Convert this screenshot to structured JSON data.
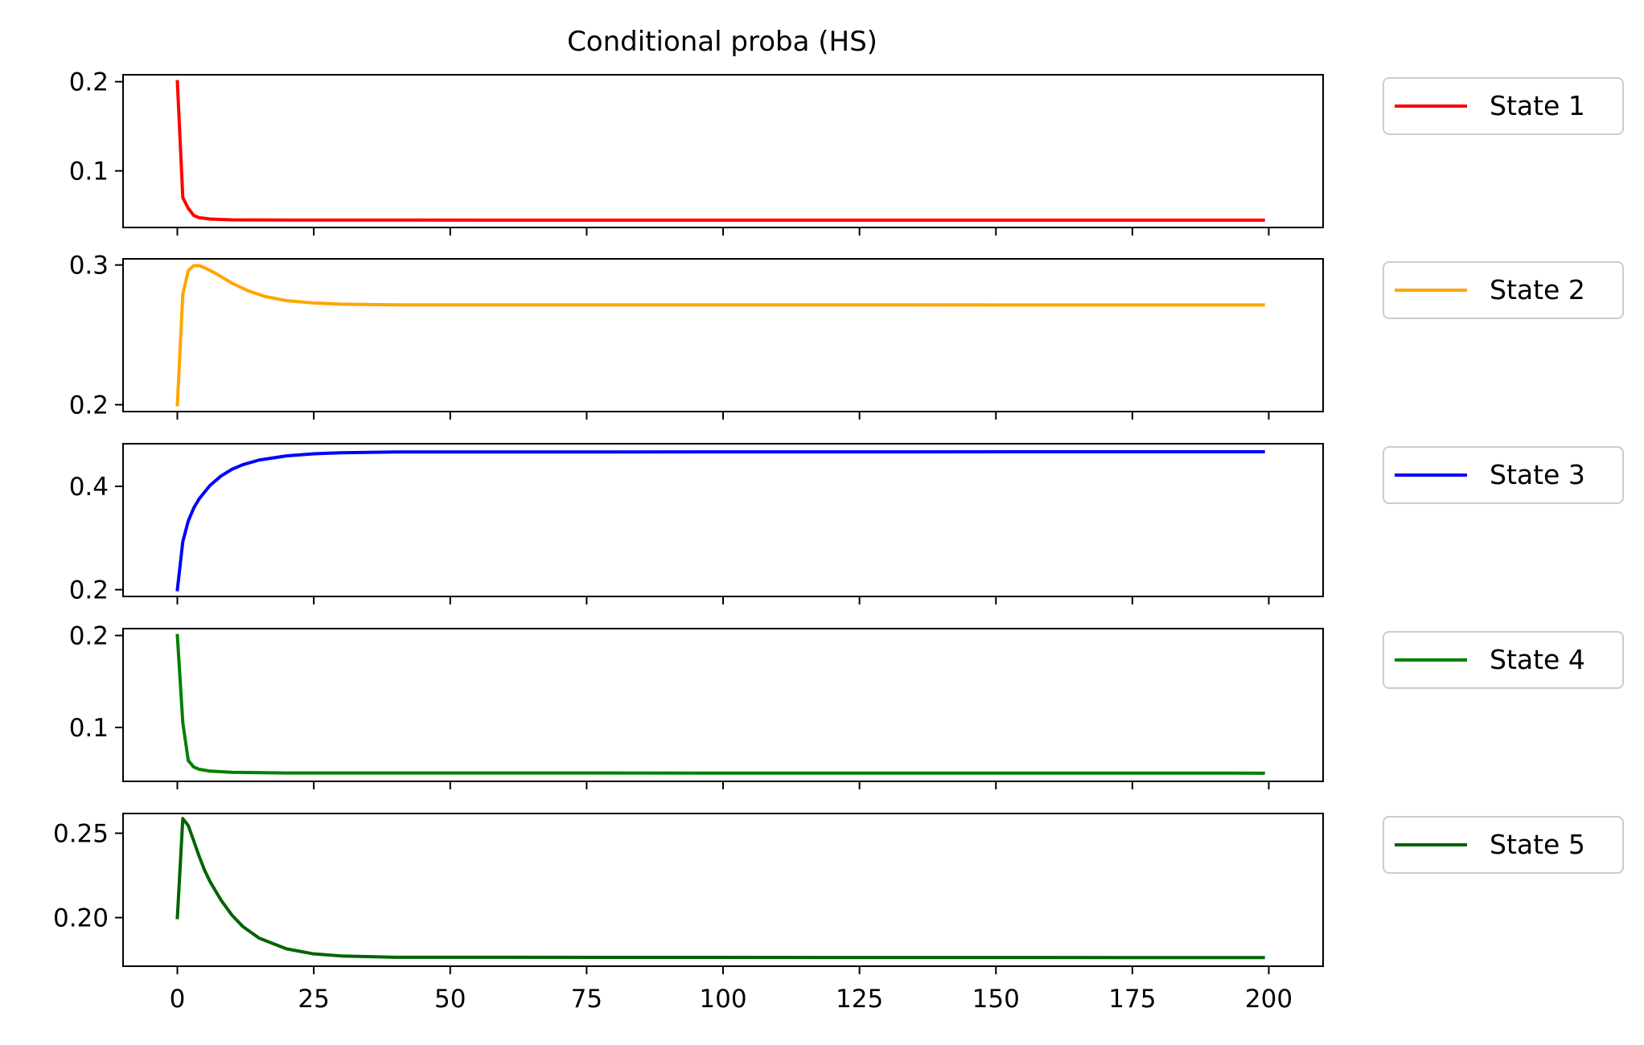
{
  "chart_data": {
    "type": "line",
    "title": "Conditional proba (HS)",
    "xlabel": "",
    "x_ticks": [
      0,
      25,
      50,
      75,
      100,
      125,
      150,
      175,
      200
    ],
    "xlim": [
      -9.95,
      209.95
    ],
    "grid": false,
    "legend_placement": "right of each panel",
    "panels": [
      {
        "name": "State 1",
        "color": "#ff0000",
        "ylabel": "",
        "ylim": [
          0.0365,
          0.2078
        ],
        "y_ticks": [
          0.1,
          0.2
        ],
        "y_tick_labels": [
          "0.1",
          "0.2"
        ],
        "points": [
          [
            0,
            0.2
          ],
          [
            1,
            0.07
          ],
          [
            2,
            0.058
          ],
          [
            3,
            0.05
          ],
          [
            4,
            0.0475
          ],
          [
            6,
            0.046
          ],
          [
            10,
            0.0451
          ],
          [
            20,
            0.0448
          ],
          [
            199,
            0.0447
          ]
        ]
      },
      {
        "name": "State 2",
        "color": "#ffa500",
        "ylabel": "",
        "ylim": [
          0.1951,
          0.3044
        ],
        "y_ticks": [
          0.2,
          0.3
        ],
        "y_tick_labels": [
          "0.2",
          "0.3"
        ],
        "points": [
          [
            0,
            0.2
          ],
          [
            1,
            0.279
          ],
          [
            2,
            0.296
          ],
          [
            3,
            0.2995
          ],
          [
            4,
            0.2995
          ],
          [
            5,
            0.298
          ],
          [
            7,
            0.294
          ],
          [
            10,
            0.287
          ],
          [
            13,
            0.2815
          ],
          [
            16,
            0.2775
          ],
          [
            20,
            0.2745
          ],
          [
            25,
            0.2728
          ],
          [
            30,
            0.272
          ],
          [
            40,
            0.2715
          ],
          [
            199,
            0.2714
          ]
        ]
      },
      {
        "name": "State 3",
        "color": "#0000ff",
        "ylabel": "",
        "ylim": [
          0.1869,
          0.4825
        ],
        "y_ticks": [
          0.2,
          0.4
        ],
        "y_tick_labels": [
          "0.2",
          "0.4"
        ],
        "points": [
          [
            0,
            0.2
          ],
          [
            1,
            0.293
          ],
          [
            2,
            0.333
          ],
          [
            3,
            0.358
          ],
          [
            4,
            0.376
          ],
          [
            6,
            0.402
          ],
          [
            8,
            0.42
          ],
          [
            10,
            0.433
          ],
          [
            12,
            0.442
          ],
          [
            15,
            0.451
          ],
          [
            20,
            0.459
          ],
          [
            25,
            0.463
          ],
          [
            30,
            0.465
          ],
          [
            40,
            0.4665
          ],
          [
            199,
            0.467
          ]
        ]
      },
      {
        "name": "State 4",
        "color": "#008000",
        "ylabel": "",
        "ylim": [
          0.0414,
          0.2075
        ],
        "y_ticks": [
          0.1,
          0.2
        ],
        "y_tick_labels": [
          "0.1",
          "0.2"
        ],
        "points": [
          [
            0,
            0.2
          ],
          [
            1,
            0.105
          ],
          [
            2,
            0.064
          ],
          [
            3,
            0.057
          ],
          [
            4,
            0.0545
          ],
          [
            6,
            0.0525
          ],
          [
            10,
            0.0512
          ],
          [
            20,
            0.0505
          ],
          [
            199,
            0.0503
          ]
        ]
      },
      {
        "name": "State 5",
        "color": "#006400",
        "ylabel": "",
        "ylim": [
          0.1712,
          0.2617
        ],
        "y_ticks": [
          0.2,
          0.25
        ],
        "y_tick_labels": [
          "0.20",
          "0.25"
        ],
        "points": [
          [
            0,
            0.2
          ],
          [
            1,
            0.2587
          ],
          [
            2,
            0.2545
          ],
          [
            3,
            0.2455
          ],
          [
            4,
            0.2363
          ],
          [
            5,
            0.228
          ],
          [
            6,
            0.2213
          ],
          [
            7,
            0.2158
          ],
          [
            8,
            0.2104
          ],
          [
            10,
            0.2015
          ],
          [
            12,
            0.1947
          ],
          [
            15,
            0.1878
          ],
          [
            20,
            0.1815
          ],
          [
            25,
            0.1785
          ],
          [
            30,
            0.1773
          ],
          [
            40,
            0.1765
          ],
          [
            199,
            0.1763
          ]
        ]
      }
    ]
  }
}
